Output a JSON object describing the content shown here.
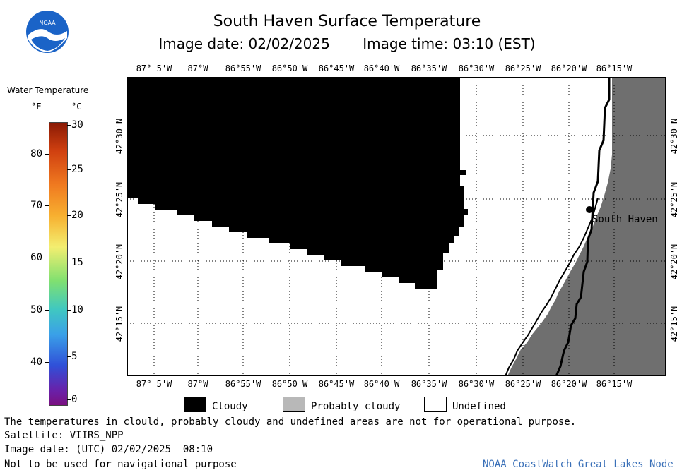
{
  "header": {
    "title": "South Haven Surface Temperature",
    "image_date": "Image date: 02/02/2025",
    "image_time": "Image time: 03:10 (EST)",
    "logo_text": "NOAA"
  },
  "colorbar": {
    "title": "Water Temperature",
    "unit_f": "°F",
    "unit_c": "°C",
    "f_ticks": [
      "80",
      "70",
      "60",
      "50",
      "40"
    ],
    "c_ticks": [
      "30",
      "25",
      "20",
      "15",
      "10",
      "5",
      "0"
    ]
  },
  "map": {
    "lon_labels": [
      "87° 5'W",
      "87°W",
      "86°55'W",
      "86°50'W",
      "86°45'W",
      "86°40'W",
      "86°35'W",
      "86°30'W",
      "86°25'W",
      "86°20'W",
      "86°15'W"
    ],
    "lat_labels": [
      "42°30'N",
      "42°25'N",
      "42°20'N",
      "42°15'N"
    ],
    "city_label": "South Haven",
    "colors": {
      "cloud": "#000000",
      "land": "#6f6f6f",
      "undefined": "#ffffff"
    }
  },
  "legend": {
    "cloudy": "Cloudy",
    "probably_cloudy": "Probably cloudy",
    "undefined": "Undefined"
  },
  "footer": {
    "note": "The temperatures in clould, probably cloudy and undefined areas are not for operational purpose.",
    "satellite": "Satellite: VIIRS_NPP",
    "utc_date": "Image date: (UTC) 02/02/2025  08:10",
    "nav_warning": "Not to be used for navigational purpose",
    "credit": "NOAA CoastWatch Great Lakes Node"
  }
}
